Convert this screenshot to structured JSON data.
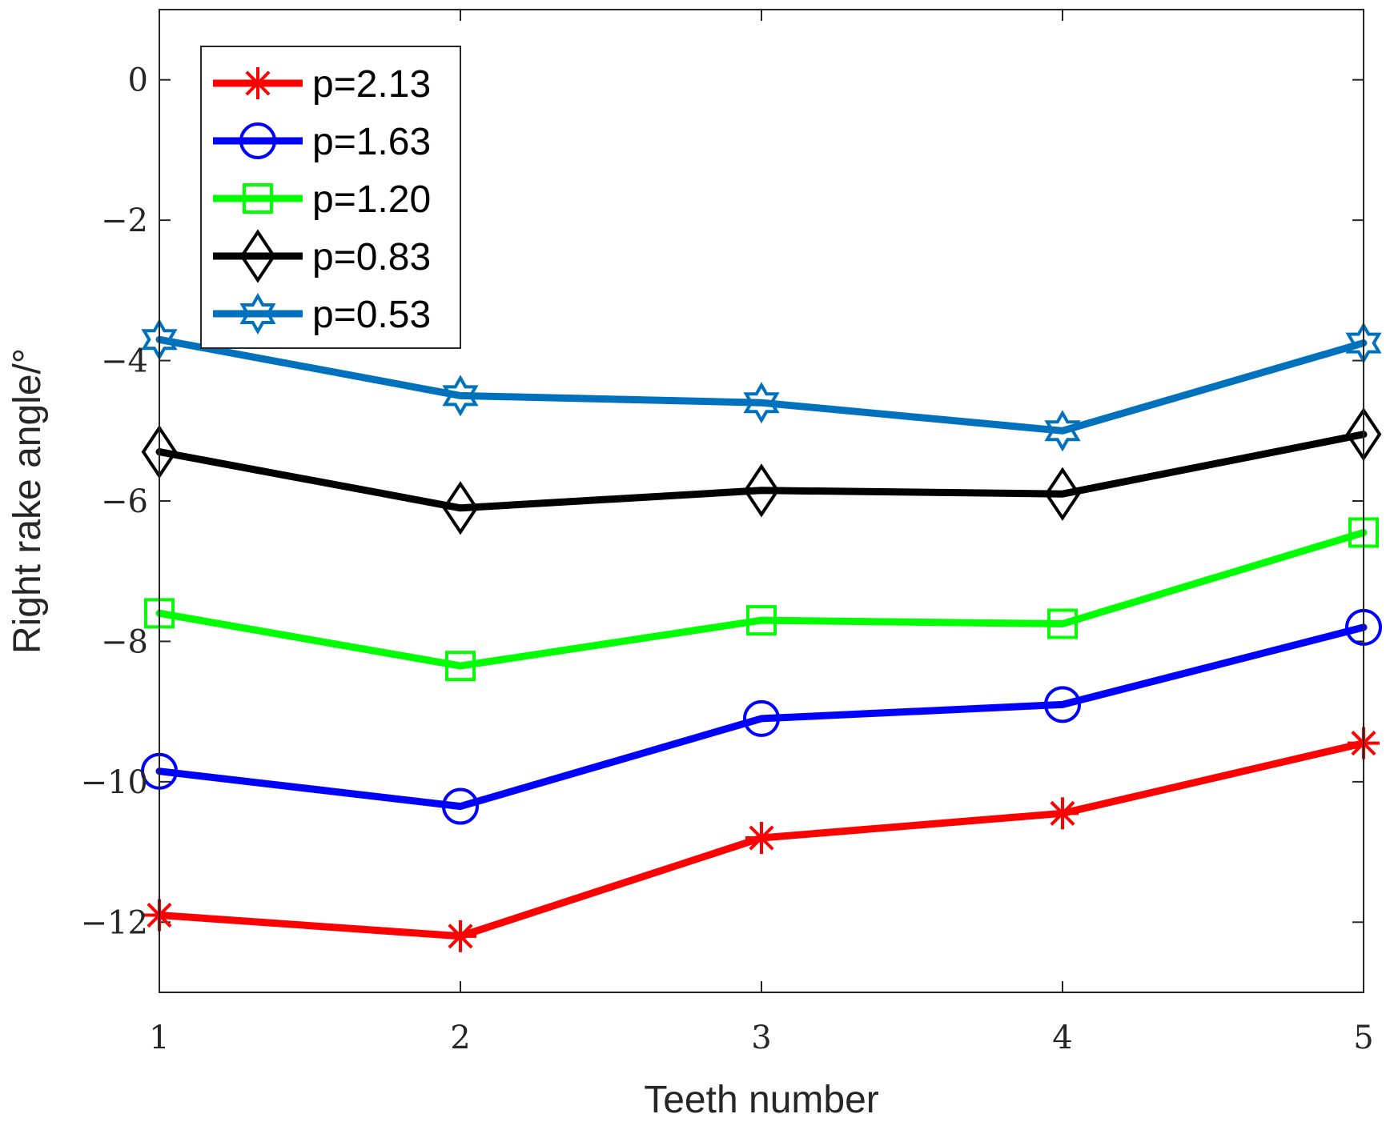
{
  "chart_data": {
    "type": "line",
    "title": "",
    "xlabel": "Teeth number",
    "ylabel": "Right rake angle/°",
    "x": [
      1,
      2,
      3,
      4,
      5
    ],
    "xlim": [
      1,
      5
    ],
    "ylim": [
      -13,
      1
    ],
    "xticks": [
      1,
      2,
      3,
      4,
      5
    ],
    "xtick_labels": [
      "1",
      "2",
      "3",
      "4",
      "5"
    ],
    "yticks": [
      0,
      -2,
      -4,
      -6,
      -8,
      -10,
      -12
    ],
    "ytick_labels": [
      "0",
      "−2",
      "−4",
      "−6",
      "−8",
      "−10",
      "−12"
    ],
    "grid": false,
    "legend_position": "top-left",
    "series": [
      {
        "name": "p=2.13",
        "color": "#ff0000",
        "marker": "asterisk",
        "values": [
          -11.9,
          -12.2,
          -10.8,
          -10.45,
          -9.45
        ]
      },
      {
        "name": "p=1.63",
        "color": "#0000ff",
        "marker": "circle",
        "values": [
          -9.85,
          -10.35,
          -9.1,
          -8.9,
          -7.8
        ]
      },
      {
        "name": "p=1.20",
        "color": "#00ff00",
        "marker": "square",
        "values": [
          -7.6,
          -8.35,
          -7.7,
          -7.75,
          -6.45
        ]
      },
      {
        "name": "p=0.83",
        "color": "#000000",
        "marker": "diamond",
        "values": [
          -5.3,
          -6.1,
          -5.85,
          -5.9,
          -5.05
        ]
      },
      {
        "name": "p=0.53",
        "color": "#0072bd",
        "marker": "hexagram",
        "values": [
          -3.7,
          -4.5,
          -4.6,
          -5.0,
          -3.75
        ]
      }
    ]
  }
}
